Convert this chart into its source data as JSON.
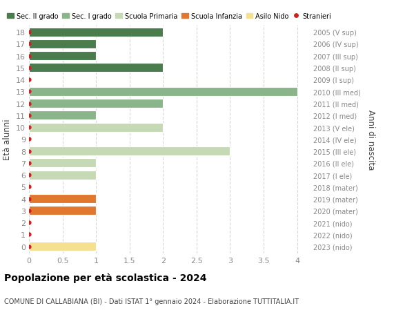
{
  "ages": [
    18,
    17,
    16,
    15,
    14,
    13,
    12,
    11,
    10,
    9,
    8,
    7,
    6,
    5,
    4,
    3,
    2,
    1,
    0
  ],
  "right_labels": [
    "2005 (V sup)",
    "2006 (IV sup)",
    "2007 (III sup)",
    "2008 (II sup)",
    "2009 (I sup)",
    "2010 (III med)",
    "2011 (II med)",
    "2012 (I med)",
    "2013 (V ele)",
    "2014 (IV ele)",
    "2015 (III ele)",
    "2016 (II ele)",
    "2017 (I ele)",
    "2018 (mater)",
    "2019 (mater)",
    "2020 (mater)",
    "2021 (nido)",
    "2022 (nido)",
    "2023 (nido)"
  ],
  "bar_values": [
    2,
    1,
    1,
    2,
    0,
    4,
    2,
    1,
    2,
    0,
    3,
    1,
    1,
    0,
    1,
    1,
    0,
    0,
    1
  ],
  "bar_colors": [
    "#4a7c4e",
    "#4a7c4e",
    "#4a7c4e",
    "#4a7c4e",
    "#4a7c4e",
    "#8ab58a",
    "#8ab58a",
    "#8ab58a",
    "#c5d9b5",
    "#c5d9b5",
    "#c5d9b5",
    "#c5d9b5",
    "#c5d9b5",
    "#e07830",
    "#e07830",
    "#e07830",
    "#f5e090",
    "#f5e090",
    "#f5e090"
  ],
  "xlim": [
    0,
    4.2
  ],
  "ylim_low": -0.6,
  "ylim_high": 18.6,
  "xticks": [
    0,
    0.5,
    1.0,
    1.5,
    2.0,
    2.5,
    3.0,
    3.5,
    4.0
  ],
  "xlabel_left": "Età alunni",
  "xlabel_right": "Anni di nascita",
  "title": "Popolazione per età scolastica - 2024",
  "subtitle": "COMUNE DI CALLABIANA (BI) - Dati ISTAT 1° gennaio 2024 - Elaborazione TUTTITALIA.IT",
  "legend_labels": [
    "Sec. II grado",
    "Sec. I grado",
    "Scuola Primaria",
    "Scuola Infanzia",
    "Asilo Nido",
    "Stranieri"
  ],
  "legend_colors": [
    "#4a7c4e",
    "#8ab58a",
    "#c5d9b5",
    "#e07830",
    "#f5e090",
    "#cc2222"
  ],
  "bg_color": "#ffffff",
  "bar_height": 0.75,
  "stranieri_color": "#cc2222",
  "grid_color": "#cccccc",
  "right_label_color": "#888888",
  "tick_label_color": "#888888"
}
